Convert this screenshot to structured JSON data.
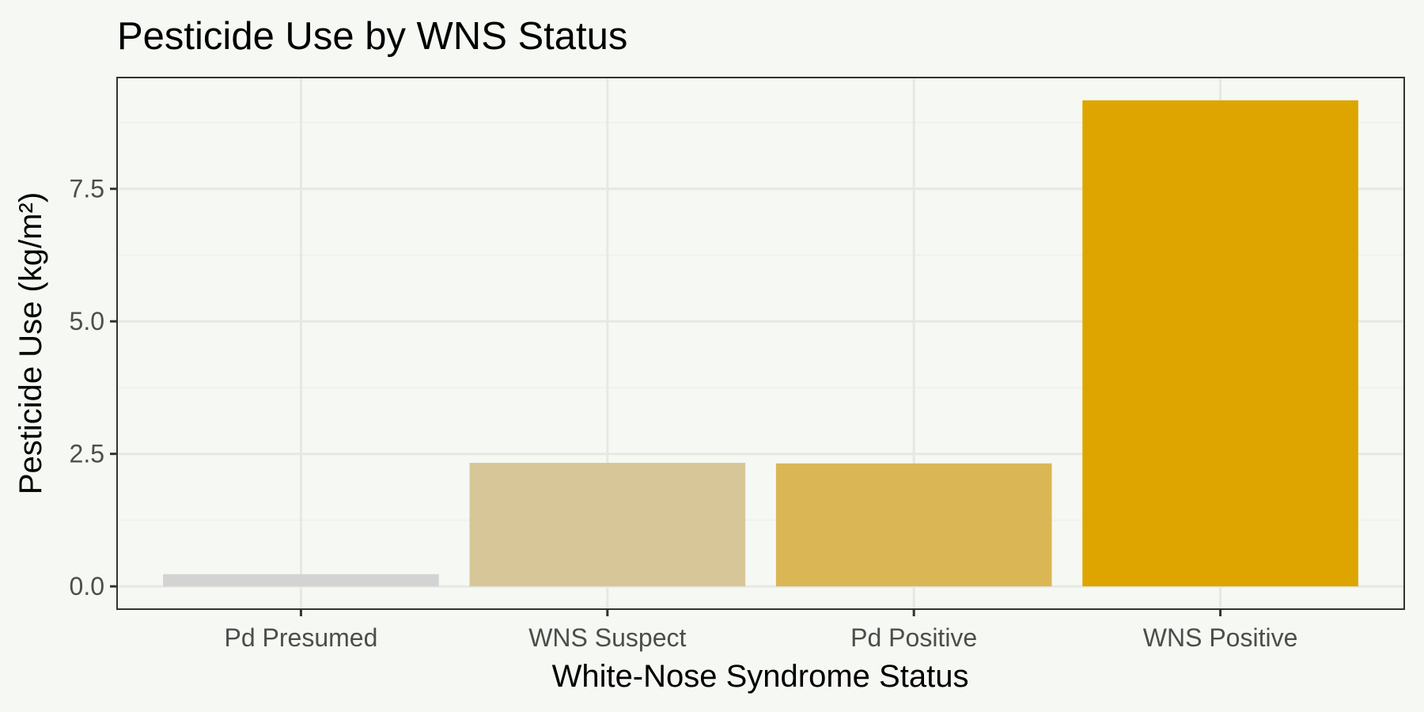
{
  "chart_data": {
    "type": "bar",
    "title": "Pesticide Use by WNS Status",
    "xlabel": "White-Nose Syndrome Status",
    "ylabel": "Pesticide Use (kg/m²)",
    "categories": [
      "Pd Presumed",
      "WNS Suspect",
      "Pd Positive",
      "WNS Positive"
    ],
    "values": [
      0.23,
      2.33,
      2.32,
      9.17
    ],
    "colors": [
      "#d3d3d3",
      "#d7c697",
      "#dbb655",
      "#dea500"
    ],
    "ylim": [
      -0.43,
      9.6
    ],
    "yticks": [
      0.0,
      2.5,
      5.0,
      7.5
    ],
    "ytick_labels": [
      "0.0",
      "2.5",
      "5.0",
      "7.5"
    ],
    "grid": true,
    "legend": "none"
  }
}
